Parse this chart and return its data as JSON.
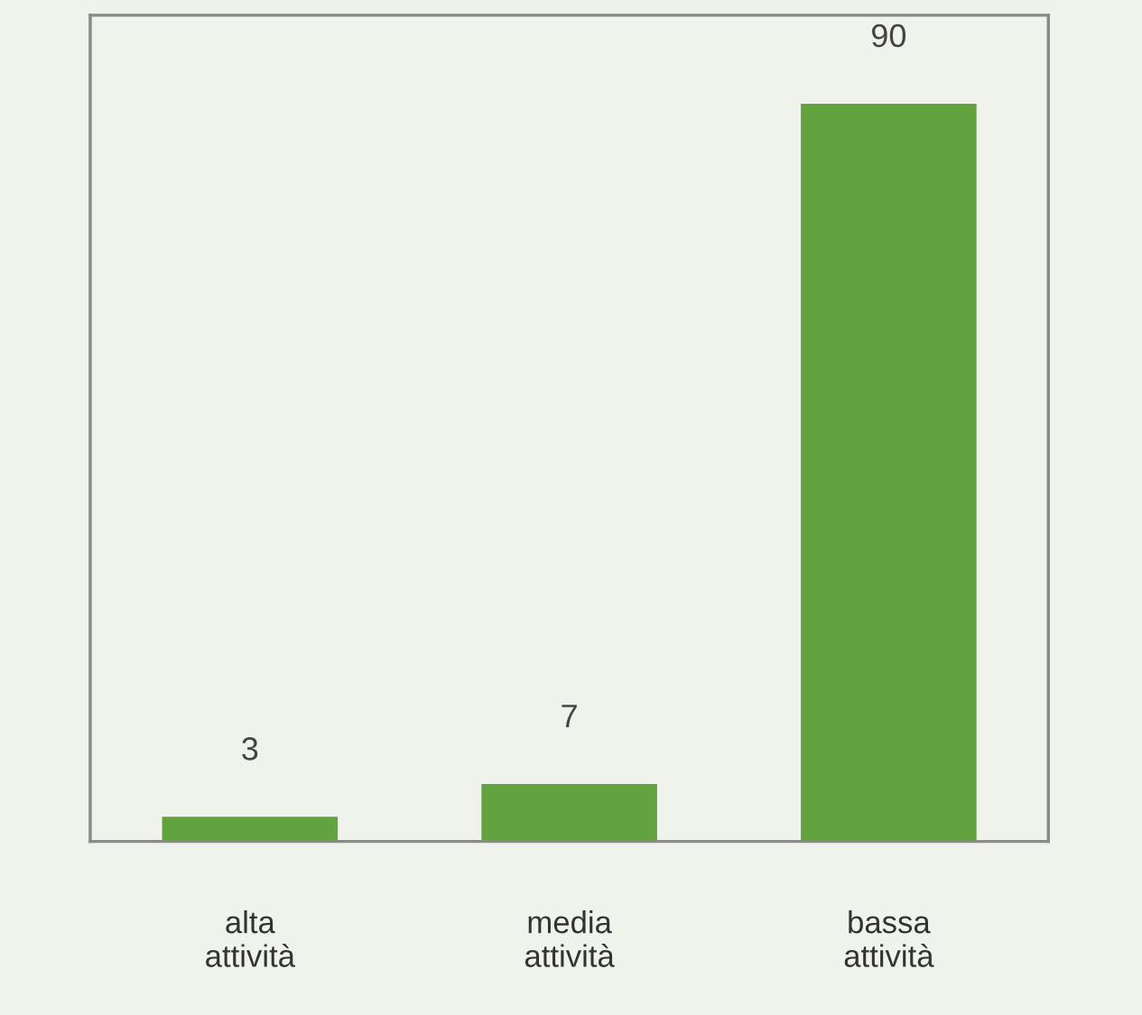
{
  "chart_data": {
    "type": "bar",
    "categories": [
      "alta\nattività",
      "media\nattività",
      "bassa\nattività"
    ],
    "values": [
      3,
      7,
      90
    ],
    "color": "#62a340",
    "data_labels": true,
    "tick_labels": "x",
    "grid": false,
    "legend": false
  }
}
